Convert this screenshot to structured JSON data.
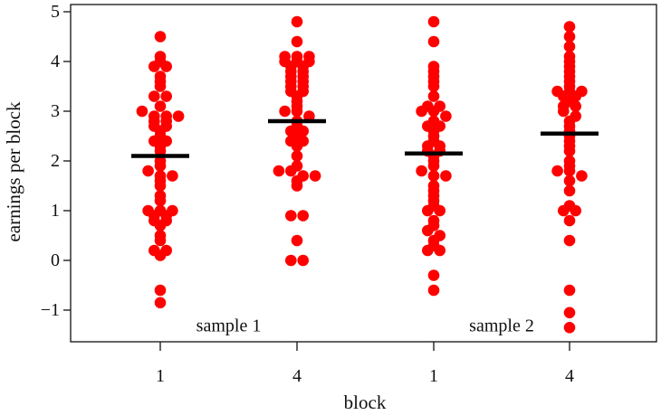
{
  "chart_data": {
    "type": "scatter",
    "xlabel": "block",
    "ylabel": "earnings per block",
    "ylim": [
      -1.7,
      5.1
    ],
    "yticks": [
      -1,
      0,
      1,
      2,
      3,
      4,
      5
    ],
    "ytick_labels": [
      "−1",
      "0",
      "1",
      "2",
      "3",
      "4",
      "5"
    ],
    "point_color": "#ff0000",
    "mean_color": "#000000",
    "groups": [
      {
        "label": "1",
        "mean": 2.1,
        "values": [
          4.5,
          4.1,
          4.0,
          3.9,
          3.9,
          3.7,
          3.6,
          3.5,
          3.3,
          3.3,
          3.1,
          3.0,
          2.9,
          2.9,
          2.9,
          2.8,
          2.8,
          2.7,
          2.7,
          2.6,
          2.5,
          2.4,
          2.4,
          2.3,
          2.2,
          2.0,
          1.9,
          1.8,
          1.7,
          1.7,
          1.6,
          1.5,
          1.3,
          1.2,
          1.0,
          1.0,
          1.0,
          0.9,
          0.9,
          0.8,
          0.8,
          0.7,
          0.5,
          0.4,
          0.2,
          0.2,
          0.1,
          -0.6,
          -0.85
        ]
      },
      {
        "label": "4",
        "mean": 2.8,
        "values": [
          4.8,
          4.4,
          4.1,
          4.1,
          4.1,
          4.0,
          4.0,
          4.0,
          3.9,
          3.9,
          3.8,
          3.8,
          3.7,
          3.7,
          3.6,
          3.6,
          3.5,
          3.5,
          3.4,
          3.4,
          3.3,
          3.2,
          3.1,
          3.0,
          3.0,
          2.9,
          2.8,
          2.7,
          2.6,
          2.6,
          2.5,
          2.4,
          2.4,
          2.3,
          2.1,
          1.9,
          1.8,
          1.8,
          1.7,
          1.7,
          1.6,
          1.5,
          0.9,
          0.9,
          0.4,
          0.0,
          0.0
        ]
      },
      {
        "label": "1",
        "mean": 2.15,
        "values": [
          4.8,
          4.4,
          3.9,
          3.8,
          3.7,
          3.6,
          3.5,
          3.3,
          3.1,
          3.1,
          3.0,
          3.0,
          2.9,
          2.8,
          2.7,
          2.7,
          2.6,
          2.5,
          2.4,
          2.3,
          2.3,
          2.2,
          2.2,
          2.1,
          2.0,
          1.9,
          1.8,
          1.7,
          1.7,
          1.5,
          1.4,
          1.3,
          1.2,
          1.1,
          1.0,
          1.0,
          0.8,
          0.7,
          0.6,
          0.5,
          0.4,
          0.3,
          0.2,
          0.2,
          -0.3,
          -0.6
        ]
      },
      {
        "label": "4",
        "mean": 2.55,
        "values": [
          4.7,
          4.5,
          4.3,
          4.1,
          4.0,
          3.9,
          3.8,
          3.7,
          3.6,
          3.5,
          3.4,
          3.4,
          3.4,
          3.3,
          3.3,
          3.2,
          3.1,
          3.1,
          3.0,
          2.9,
          2.8,
          2.7,
          2.6,
          2.5,
          2.4,
          2.3,
          2.2,
          2.0,
          1.9,
          1.8,
          1.8,
          1.7,
          1.6,
          1.4,
          1.1,
          1.0,
          1.0,
          0.8,
          0.4,
          -0.6,
          -1.05,
          -1.35
        ]
      }
    ],
    "annotations": [
      {
        "text": "sample 1",
        "x": 1.5,
        "y": -1.3
      },
      {
        "text": "sample 2",
        "x": 3.5,
        "y": -1.3
      }
    ]
  }
}
